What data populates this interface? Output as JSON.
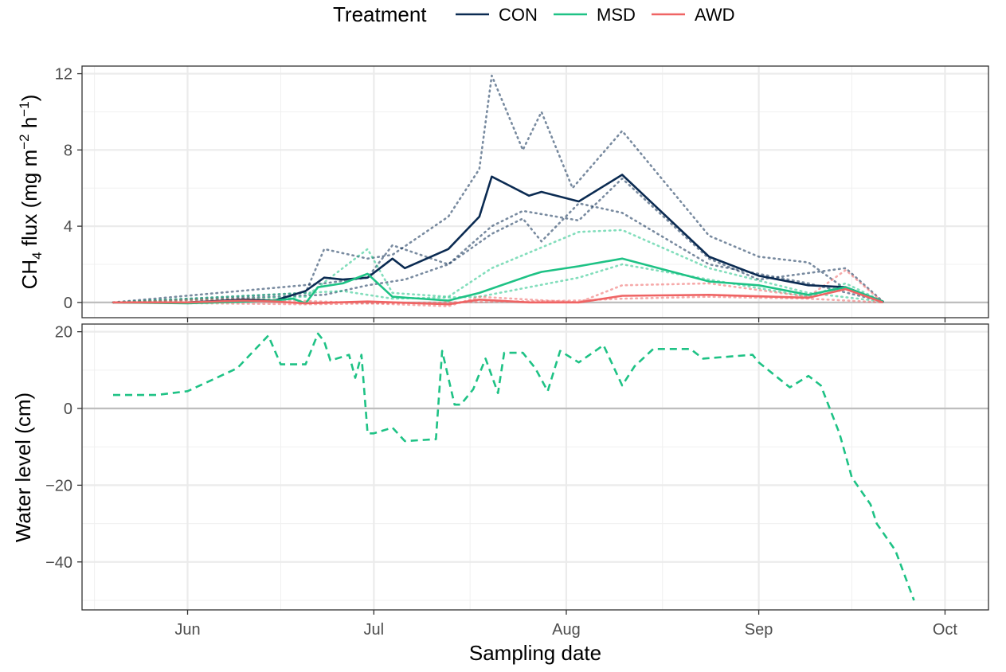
{
  "legend": {
    "title": "Treatment",
    "items": [
      {
        "name": "CON",
        "color": "#0b2b52"
      },
      {
        "name": "MSD",
        "color": "#1ec285"
      },
      {
        "name": "AWD",
        "color": "#ef6464"
      }
    ]
  },
  "x_axis": {
    "label": "Sampling date",
    "tick_labels": [
      "Jun",
      "Jul",
      "Aug",
      "Sep",
      "Oct"
    ],
    "tick_dates": [
      "2021-06-01",
      "2021-07-01",
      "2021-08-01",
      "2021-09-01",
      "2021-10-01"
    ],
    "range": [
      "2021-05-15",
      "2021-10-08"
    ]
  },
  "chart_data": [
    {
      "type": "line",
      "ylabel": "CH4 flux (mg m−2 h−1)",
      "ylabel_parts": {
        "lead": "CH",
        "sub": "4",
        "mid": " flux (mg m",
        "sup1": "−2",
        "mid2": " h",
        "sup2": "−1",
        "end": ")"
      },
      "y_ticks": [
        "0",
        "4",
        "8",
        "12"
      ],
      "ylim": [
        -0.8,
        12.4
      ],
      "grid": true,
      "hline": 0,
      "series": [
        {
          "name": "CON",
          "style": "solid",
          "color": "#0b2b52",
          "x": [
            "2021-05-20",
            "2021-06-01",
            "2021-06-10",
            "2021-06-15",
            "2021-06-20",
            "2021-06-23",
            "2021-06-26",
            "2021-06-30",
            "2021-07-04",
            "2021-07-06",
            "2021-07-13",
            "2021-07-18",
            "2021-07-20",
            "2021-07-26",
            "2021-07-28",
            "2021-08-03",
            "2021-08-10",
            "2021-08-24",
            "2021-09-01",
            "2021-09-09",
            "2021-09-15",
            "2021-09-21"
          ],
          "y": [
            0.0,
            0.0,
            0.15,
            0.1,
            0.6,
            1.3,
            1.2,
            1.3,
            2.3,
            1.8,
            2.8,
            4.5,
            6.6,
            5.6,
            5.8,
            5.3,
            6.7,
            2.4,
            1.4,
            0.9,
            0.8,
            0.05
          ]
        },
        {
          "name": "MSD",
          "style": "solid",
          "color": "#1ec285",
          "x": [
            "2021-05-20",
            "2021-06-01",
            "2021-06-10",
            "2021-06-15",
            "2021-06-18",
            "2021-06-20",
            "2021-06-22",
            "2021-06-26",
            "2021-06-30",
            "2021-07-04",
            "2021-07-13",
            "2021-07-18",
            "2021-07-26",
            "2021-07-28",
            "2021-08-03",
            "2021-08-10",
            "2021-08-24",
            "2021-09-01",
            "2021-09-09",
            "2021-09-15",
            "2021-09-21"
          ],
          "y": [
            0.0,
            -0.05,
            0.05,
            0.1,
            0.2,
            -0.05,
            0.8,
            1.0,
            1.5,
            0.3,
            0.1,
            0.5,
            1.4,
            1.6,
            1.9,
            2.3,
            1.1,
            0.9,
            0.4,
            0.8,
            0.05
          ]
        },
        {
          "name": "AWD",
          "style": "solid",
          "color": "#ef6464",
          "x": [
            "2021-05-20",
            "2021-06-01",
            "2021-06-10",
            "2021-06-15",
            "2021-06-20",
            "2021-06-30",
            "2021-07-13",
            "2021-07-18",
            "2021-07-26",
            "2021-08-03",
            "2021-08-10",
            "2021-08-24",
            "2021-09-09",
            "2021-09-15",
            "2021-09-21"
          ],
          "y": [
            0.0,
            0.0,
            0.1,
            0.05,
            -0.05,
            0.05,
            -0.1,
            0.15,
            0.0,
            0.0,
            0.35,
            0.4,
            0.25,
            0.7,
            0.0
          ]
        },
        {
          "name": "CON replicate 1",
          "style": "dotted",
          "color": "#0b2b52",
          "x": [
            "2021-05-20",
            "2021-06-20",
            "2021-06-23",
            "2021-06-30",
            "2021-07-04",
            "2021-07-13",
            "2021-07-18",
            "2021-07-20",
            "2021-07-25",
            "2021-07-28",
            "2021-08-02",
            "2021-08-10",
            "2021-08-24",
            "2021-09-01",
            "2021-09-09",
            "2021-09-15",
            "2021-09-21"
          ],
          "y": [
            0.0,
            0.5,
            2.8,
            2.3,
            2.5,
            4.5,
            7.0,
            11.9,
            8.0,
            10.0,
            6.0,
            9.0,
            3.5,
            2.4,
            2.1,
            0.7,
            0.05
          ]
        },
        {
          "name": "CON replicate 2",
          "style": "dotted",
          "color": "#0b2b52",
          "x": [
            "2021-05-20",
            "2021-06-23",
            "2021-06-30",
            "2021-07-04",
            "2021-07-13",
            "2021-07-20",
            "2021-07-25",
            "2021-08-03",
            "2021-08-10",
            "2021-08-24",
            "2021-09-01",
            "2021-09-15",
            "2021-09-21"
          ],
          "y": [
            0.0,
            1.0,
            1.3,
            3.0,
            2.0,
            4.0,
            4.8,
            4.3,
            6.5,
            2.3,
            1.2,
            1.8,
            0.05
          ]
        },
        {
          "name": "CON replicate 3",
          "style": "dotted",
          "color": "#0b2b52",
          "x": [
            "2021-05-20",
            "2021-06-23",
            "2021-06-30",
            "2021-07-06",
            "2021-07-13",
            "2021-07-20",
            "2021-07-25",
            "2021-07-28",
            "2021-08-03",
            "2021-08-10",
            "2021-08-24",
            "2021-09-09",
            "2021-09-21"
          ],
          "y": [
            0.0,
            0.4,
            0.9,
            1.2,
            2.0,
            3.6,
            4.4,
            3.2,
            5.2,
            4.7,
            2.0,
            1.0,
            0.05
          ]
        },
        {
          "name": "MSD replicate 1",
          "style": "dotted",
          "color": "#1ec285",
          "x": [
            "2021-05-20",
            "2021-06-20",
            "2021-06-30",
            "2021-07-04",
            "2021-07-13",
            "2021-07-20",
            "2021-08-03",
            "2021-08-10",
            "2021-08-24",
            "2021-09-09",
            "2021-09-21"
          ],
          "y": [
            0.0,
            0.3,
            2.8,
            0.5,
            0.3,
            1.8,
            3.7,
            3.8,
            1.8,
            0.5,
            0.05
          ]
        },
        {
          "name": "MSD replicate 2",
          "style": "dotted",
          "color": "#1ec285",
          "x": [
            "2021-05-20",
            "2021-06-26",
            "2021-07-04",
            "2021-07-18",
            "2021-08-03",
            "2021-08-10",
            "2021-08-24",
            "2021-09-09",
            "2021-09-15",
            "2021-09-21"
          ],
          "y": [
            0.0,
            0.6,
            0.2,
            0.3,
            1.3,
            2.0,
            1.2,
            0.3,
            1.0,
            0.05
          ]
        },
        {
          "name": "AWD replicate 1",
          "style": "dotted",
          "color": "#ef6464",
          "x": [
            "2021-05-20",
            "2021-06-10",
            "2021-07-13",
            "2021-07-18",
            "2021-08-03",
            "2021-08-10",
            "2021-08-24",
            "2021-09-09",
            "2021-09-15",
            "2021-09-21"
          ],
          "y": [
            0.0,
            0.2,
            -0.2,
            0.3,
            0.0,
            0.9,
            1.0,
            0.3,
            1.7,
            0.0
          ]
        },
        {
          "name": "AWD replicate 2",
          "style": "dotted",
          "color": "#ef6464",
          "x": [
            "2021-05-20",
            "2021-06-20",
            "2021-07-13",
            "2021-08-03",
            "2021-08-10",
            "2021-08-24",
            "2021-09-09",
            "2021-09-21"
          ],
          "y": [
            0.0,
            -0.1,
            0.0,
            0.1,
            0.2,
            0.3,
            0.2,
            0.0
          ]
        }
      ]
    },
    {
      "type": "line",
      "ylabel": "Water level (cm)",
      "y_ticks": [
        "−40",
        "−20",
        "0",
        "20"
      ],
      "y_tick_values": [
        -40,
        -20,
        0,
        20
      ],
      "ylim": [
        -52.5,
        22
      ],
      "grid": true,
      "hline": 0,
      "series": [
        {
          "style": "dashed",
          "color": "#1ec285",
          "x": [
            "2021-05-20",
            "2021-05-27",
            "2021-06-01",
            "2021-06-05",
            "2021-06-09",
            "2021-06-14",
            "2021-06-16",
            "2021-06-20",
            "2021-06-22",
            "2021-06-23",
            "2021-06-24",
            "2021-06-27",
            "2021-06-28",
            "2021-06-29",
            "2021-06-30",
            "2021-07-01",
            "2021-07-04",
            "2021-07-06",
            "2021-07-11",
            "2021-07-12",
            "2021-07-14",
            "2021-07-15",
            "2021-07-17",
            "2021-07-19",
            "2021-07-21",
            "2021-07-22",
            "2021-07-25",
            "2021-07-27",
            "2021-07-29",
            "2021-07-31",
            "2021-08-03",
            "2021-08-07",
            "2021-08-10",
            "2021-08-12",
            "2021-08-15",
            "2021-08-21",
            "2021-08-23",
            "2021-08-31",
            "2021-09-01",
            "2021-09-06",
            "2021-09-09",
            "2021-09-11",
            "2021-09-14",
            "2021-09-16",
            "2021-09-19",
            "2021-09-20",
            "2021-09-23",
            "2021-09-26"
          ],
          "y": [
            3.5,
            3.5,
            4.5,
            7.5,
            10.5,
            19.0,
            11.5,
            11.5,
            19.5,
            17.5,
            12.5,
            14.0,
            8.0,
            14.0,
            -6.5,
            -6.5,
            -5.0,
            -8.5,
            -8.0,
            15.0,
            1.0,
            1.0,
            5.0,
            13.0,
            4.0,
            14.5,
            14.5,
            10.5,
            4.5,
            15.0,
            12.0,
            16.5,
            6.0,
            11.0,
            15.5,
            15.5,
            13.0,
            14.0,
            12.0,
            5.5,
            8.5,
            6.0,
            -6.5,
            -18.0,
            -25.0,
            -30.0,
            -37.0,
            -50.0
          ]
        }
      ]
    }
  ]
}
